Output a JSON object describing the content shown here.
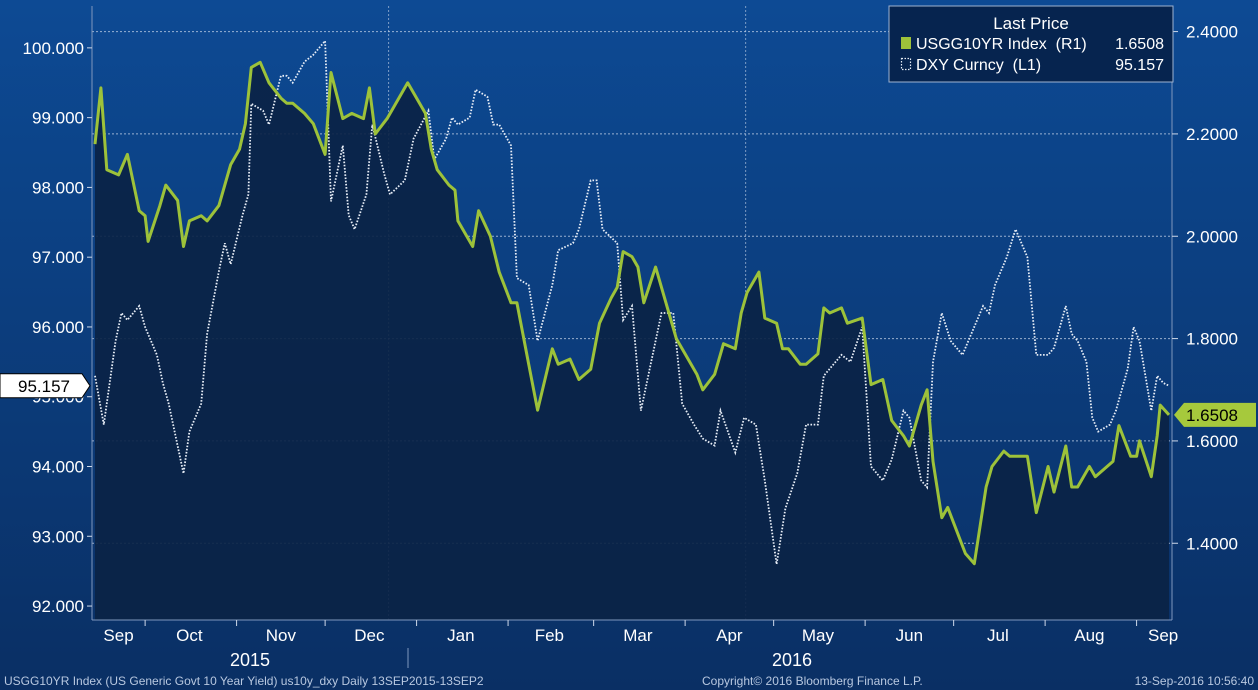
{
  "colors": {
    "bg_top": "#0d4a94",
    "bg_bottom": "#0a2f64",
    "plot_fill": "#0b2345",
    "grid": "#c9d6ea",
    "axis_text": "#ffffff",
    "right_axis_text": "#ffffff",
    "yield_line": "#9dc23a",
    "dxy_line": "#e8eef7",
    "badge_left_bg": "#ffffff",
    "badge_left_text": "#000000",
    "badge_right_bg": "#a6c93c",
    "badge_right_text": "#000000",
    "footer_text": "#b8c8e0"
  },
  "legend": {
    "title": "Last Price",
    "items": [
      {
        "label": "USGG10YR Index  (R1)",
        "value": "1.6508",
        "style": "solid"
      },
      {
        "label": "DXY Curncy  (L1)",
        "value": "95.157",
        "style": "dotted"
      }
    ]
  },
  "badges": {
    "left": "95.157",
    "right": "1.6508"
  },
  "footer": {
    "left": "USGG10YR Index (US Generic Govt 10 Year Yield) us10y_dxy  Daily 13SEP2015-13SEP2",
    "middle": "Copyright© 2016 Bloomberg Finance L.P.",
    "right": "13-Sep-2016 10:56:40"
  },
  "chart_data": {
    "type": "line",
    "x_months": [
      "Sep",
      "Oct",
      "Nov",
      "Dec",
      "Jan",
      "Feb",
      "Mar",
      "Apr",
      "May",
      "Jun",
      "Jul",
      "Aug",
      "Sep"
    ],
    "x_years": [
      "2015",
      "2016"
    ],
    "x_range": [
      "2015-09-13",
      "2016-09-13"
    ],
    "left_axis": {
      "series": "DXY Curncy",
      "ylim": [
        91.8,
        100.6
      ],
      "ticks": [
        "100.000",
        "99.000",
        "98.000",
        "97.000",
        "96.000",
        "95.000",
        "94.000",
        "93.000",
        "92.000"
      ]
    },
    "right_axis": {
      "series": "USGG10YR Index",
      "ylim": [
        1.25,
        2.45
      ],
      "ticks": [
        "2.4000",
        "2.2000",
        "2.0000",
        "1.8000",
        "1.6000",
        "1.4000"
      ]
    },
    "grid": true,
    "legend_position": "top-right",
    "series": [
      {
        "name": "USGG10YR Index",
        "axis": "right",
        "values": [
          [
            "2015-09-14",
            2.18
          ],
          [
            "2015-09-16",
            2.29
          ],
          [
            "2015-09-18",
            2.13
          ],
          [
            "2015-09-22",
            2.12
          ],
          [
            "2015-09-25",
            2.16
          ],
          [
            "2015-09-29",
            2.05
          ],
          [
            "2015-10-01",
            2.04
          ],
          [
            "2015-10-02",
            1.99
          ],
          [
            "2015-10-06",
            2.06
          ],
          [
            "2015-10-08",
            2.1
          ],
          [
            "2015-10-12",
            2.07
          ],
          [
            "2015-10-14",
            1.98
          ],
          [
            "2015-10-16",
            2.03
          ],
          [
            "2015-10-20",
            2.04
          ],
          [
            "2015-10-22",
            2.03
          ],
          [
            "2015-10-26",
            2.06
          ],
          [
            "2015-10-28",
            2.1
          ],
          [
            "2015-10-30",
            2.14
          ],
          [
            "2015-11-02",
            2.17
          ],
          [
            "2015-11-04",
            2.22
          ],
          [
            "2015-11-06",
            2.33
          ],
          [
            "2015-11-09",
            2.34
          ],
          [
            "2015-11-12",
            2.3
          ],
          [
            "2015-11-16",
            2.27
          ],
          [
            "2015-11-18",
            2.26
          ],
          [
            "2015-11-20",
            2.26
          ],
          [
            "2015-11-24",
            2.24
          ],
          [
            "2015-11-27",
            2.22
          ],
          [
            "2015-12-01",
            2.16
          ],
          [
            "2015-12-03",
            2.32
          ],
          [
            "2015-12-07",
            2.23
          ],
          [
            "2015-12-10",
            2.24
          ],
          [
            "2015-12-14",
            2.23
          ],
          [
            "2015-12-16",
            2.29
          ],
          [
            "2015-12-18",
            2.2
          ],
          [
            "2015-12-22",
            2.23
          ],
          [
            "2015-12-29",
            2.3
          ],
          [
            "2016-01-04",
            2.24
          ],
          [
            "2016-01-06",
            2.17
          ],
          [
            "2016-01-08",
            2.13
          ],
          [
            "2016-01-12",
            2.1
          ],
          [
            "2016-01-14",
            2.09
          ],
          [
            "2016-01-15",
            2.03
          ],
          [
            "2016-01-20",
            1.98
          ],
          [
            "2016-01-22",
            2.05
          ],
          [
            "2016-01-26",
            2.0
          ],
          [
            "2016-01-29",
            1.93
          ],
          [
            "2016-02-02",
            1.87
          ],
          [
            "2016-02-04",
            1.87
          ],
          [
            "2016-02-08",
            1.75
          ],
          [
            "2016-02-11",
            1.66
          ],
          [
            "2016-02-16",
            1.78
          ],
          [
            "2016-02-18",
            1.75
          ],
          [
            "2016-02-22",
            1.76
          ],
          [
            "2016-02-25",
            1.72
          ],
          [
            "2016-02-29",
            1.74
          ],
          [
            "2016-03-03",
            1.83
          ],
          [
            "2016-03-07",
            1.88
          ],
          [
            "2016-03-09",
            1.9
          ],
          [
            "2016-03-11",
            1.97
          ],
          [
            "2016-03-14",
            1.96
          ],
          [
            "2016-03-16",
            1.94
          ],
          [
            "2016-03-18",
            1.87
          ],
          [
            "2016-03-22",
            1.94
          ],
          [
            "2016-03-24",
            1.9
          ],
          [
            "2016-03-29",
            1.8
          ],
          [
            "2016-04-01",
            1.77
          ],
          [
            "2016-04-05",
            1.73
          ],
          [
            "2016-04-07",
            1.7
          ],
          [
            "2016-04-11",
            1.73
          ],
          [
            "2016-04-14",
            1.79
          ],
          [
            "2016-04-18",
            1.78
          ],
          [
            "2016-04-20",
            1.85
          ],
          [
            "2016-04-22",
            1.89
          ],
          [
            "2016-04-26",
            1.93
          ],
          [
            "2016-04-28",
            1.84
          ],
          [
            "2016-05-02",
            1.83
          ],
          [
            "2016-05-04",
            1.78
          ],
          [
            "2016-05-06",
            1.78
          ],
          [
            "2016-05-10",
            1.75
          ],
          [
            "2016-05-12",
            1.75
          ],
          [
            "2016-05-16",
            1.77
          ],
          [
            "2016-05-18",
            1.86
          ],
          [
            "2016-05-20",
            1.85
          ],
          [
            "2016-05-24",
            1.86
          ],
          [
            "2016-05-26",
            1.83
          ],
          [
            "2016-05-31",
            1.84
          ],
          [
            "2016-06-03",
            1.71
          ],
          [
            "2016-06-07",
            1.72
          ],
          [
            "2016-06-10",
            1.64
          ],
          [
            "2016-06-14",
            1.61
          ],
          [
            "2016-06-16",
            1.59
          ],
          [
            "2016-06-20",
            1.67
          ],
          [
            "2016-06-22",
            1.7
          ],
          [
            "2016-06-24",
            1.56
          ],
          [
            "2016-06-27",
            1.45
          ],
          [
            "2016-06-29",
            1.47
          ],
          [
            "2016-07-01",
            1.44
          ],
          [
            "2016-07-05",
            1.38
          ],
          [
            "2016-07-08",
            1.36
          ],
          [
            "2016-07-12",
            1.51
          ],
          [
            "2016-07-14",
            1.55
          ],
          [
            "2016-07-18",
            1.58
          ],
          [
            "2016-07-20",
            1.57
          ],
          [
            "2016-07-22",
            1.57
          ],
          [
            "2016-07-26",
            1.57
          ],
          [
            "2016-07-29",
            1.46
          ],
          [
            "2016-08-02",
            1.55
          ],
          [
            "2016-08-04",
            1.5
          ],
          [
            "2016-08-08",
            1.59
          ],
          [
            "2016-08-10",
            1.51
          ],
          [
            "2016-08-12",
            1.51
          ],
          [
            "2016-08-16",
            1.55
          ],
          [
            "2016-08-18",
            1.53
          ],
          [
            "2016-08-22",
            1.55
          ],
          [
            "2016-08-24",
            1.56
          ],
          [
            "2016-08-26",
            1.63
          ],
          [
            "2016-08-30",
            1.57
          ],
          [
            "2016-09-01",
            1.57
          ],
          [
            "2016-09-02",
            1.6
          ],
          [
            "2016-09-06",
            1.53
          ],
          [
            "2016-09-08",
            1.61
          ],
          [
            "2016-09-09",
            1.67
          ],
          [
            "2016-09-12",
            1.6508
          ]
        ]
      },
      {
        "name": "DXY Curncy",
        "axis": "left",
        "values": [
          [
            "2015-09-14",
            95.3
          ],
          [
            "2015-09-17",
            94.6
          ],
          [
            "2015-09-21",
            95.8
          ],
          [
            "2015-09-23",
            96.2
          ],
          [
            "2015-09-25",
            96.1
          ],
          [
            "2015-09-29",
            96.3
          ],
          [
            "2015-10-01",
            96.0
          ],
          [
            "2015-10-05",
            95.6
          ],
          [
            "2015-10-07",
            95.2
          ],
          [
            "2015-10-09",
            94.9
          ],
          [
            "2015-10-14",
            93.9
          ],
          [
            "2015-10-16",
            94.5
          ],
          [
            "2015-10-20",
            94.9
          ],
          [
            "2015-10-22",
            95.9
          ],
          [
            "2015-10-26",
            96.8
          ],
          [
            "2015-10-28",
            97.2
          ],
          [
            "2015-10-30",
            96.9
          ],
          [
            "2015-11-03",
            97.6
          ],
          [
            "2015-11-05",
            97.9
          ],
          [
            "2015-11-06",
            99.2
          ],
          [
            "2015-11-10",
            99.1
          ],
          [
            "2015-11-12",
            98.9
          ],
          [
            "2015-11-16",
            99.6
          ],
          [
            "2015-11-18",
            99.6
          ],
          [
            "2015-11-20",
            99.5
          ],
          [
            "2015-11-24",
            99.8
          ],
          [
            "2015-11-27",
            99.9
          ],
          [
            "2015-12-01",
            100.1
          ],
          [
            "2015-12-03",
            97.8
          ],
          [
            "2015-12-07",
            98.6
          ],
          [
            "2015-12-09",
            97.6
          ],
          [
            "2015-12-11",
            97.4
          ],
          [
            "2015-12-15",
            97.9
          ],
          [
            "2015-12-17",
            98.9
          ],
          [
            "2015-12-21",
            98.2
          ],
          [
            "2015-12-23",
            97.9
          ],
          [
            "2015-12-28",
            98.1
          ],
          [
            "2015-12-31",
            98.7
          ],
          [
            "2016-01-05",
            99.1
          ],
          [
            "2016-01-07",
            98.4
          ],
          [
            "2016-01-11",
            98.7
          ],
          [
            "2016-01-13",
            99.0
          ],
          [
            "2016-01-15",
            98.9
          ],
          [
            "2016-01-19",
            99.0
          ],
          [
            "2016-01-21",
            99.4
          ],
          [
            "2016-01-25",
            99.3
          ],
          [
            "2016-01-27",
            98.9
          ],
          [
            "2016-01-29",
            98.9
          ],
          [
            "2016-02-02",
            98.6
          ],
          [
            "2016-02-04",
            96.7
          ],
          [
            "2016-02-08",
            96.6
          ],
          [
            "2016-02-11",
            95.8
          ],
          [
            "2016-02-16",
            96.6
          ],
          [
            "2016-02-18",
            97.1
          ],
          [
            "2016-02-23",
            97.2
          ],
          [
            "2016-02-25",
            97.4
          ],
          [
            "2016-02-29",
            98.1
          ],
          [
            "2016-03-02",
            98.1
          ],
          [
            "2016-03-04",
            97.4
          ],
          [
            "2016-03-09",
            97.2
          ],
          [
            "2016-03-11",
            96.1
          ],
          [
            "2016-03-14",
            96.3
          ],
          [
            "2016-03-17",
            94.8
          ],
          [
            "2016-03-22",
            95.8
          ],
          [
            "2016-03-24",
            96.2
          ],
          [
            "2016-03-28",
            96.2
          ],
          [
            "2016-03-31",
            94.9
          ],
          [
            "2016-04-04",
            94.6
          ],
          [
            "2016-04-07",
            94.4
          ],
          [
            "2016-04-11",
            94.3
          ],
          [
            "2016-04-13",
            94.8
          ],
          [
            "2016-04-18",
            94.2
          ],
          [
            "2016-04-21",
            94.7
          ],
          [
            "2016-04-25",
            94.6
          ],
          [
            "2016-04-28",
            93.8
          ],
          [
            "2016-05-02",
            92.6
          ],
          [
            "2016-05-05",
            93.4
          ],
          [
            "2016-05-09",
            93.9
          ],
          [
            "2016-05-12",
            94.6
          ],
          [
            "2016-05-16",
            94.6
          ],
          [
            "2016-05-18",
            95.3
          ],
          [
            "2016-05-20",
            95.4
          ],
          [
            "2016-05-24",
            95.6
          ],
          [
            "2016-05-27",
            95.5
          ],
          [
            "2016-05-31",
            96.0
          ],
          [
            "2016-06-03",
            94.0
          ],
          [
            "2016-06-07",
            93.8
          ],
          [
            "2016-06-10",
            94.1
          ],
          [
            "2016-06-14",
            94.8
          ],
          [
            "2016-06-16",
            94.7
          ],
          [
            "2016-06-20",
            93.8
          ],
          [
            "2016-06-22",
            93.7
          ],
          [
            "2016-06-24",
            95.5
          ],
          [
            "2016-06-27",
            96.2
          ],
          [
            "2016-06-30",
            95.8
          ],
          [
            "2016-07-04",
            95.6
          ],
          [
            "2016-07-07",
            95.9
          ],
          [
            "2016-07-11",
            96.3
          ],
          [
            "2016-07-13",
            96.2
          ],
          [
            "2016-07-15",
            96.6
          ],
          [
            "2016-07-19",
            97.0
          ],
          [
            "2016-07-22",
            97.4
          ],
          [
            "2016-07-26",
            97.0
          ],
          [
            "2016-07-29",
            95.6
          ],
          [
            "2016-08-02",
            95.6
          ],
          [
            "2016-08-04",
            95.7
          ],
          [
            "2016-08-08",
            96.3
          ],
          [
            "2016-08-10",
            95.9
          ],
          [
            "2016-08-12",
            95.8
          ],
          [
            "2016-08-15",
            95.5
          ],
          [
            "2016-08-17",
            94.7
          ],
          [
            "2016-08-19",
            94.5
          ],
          [
            "2016-08-23",
            94.6
          ],
          [
            "2016-08-25",
            94.8
          ],
          [
            "2016-08-29",
            95.4
          ],
          [
            "2016-08-31",
            96.0
          ],
          [
            "2016-09-02",
            95.8
          ],
          [
            "2016-09-06",
            94.8
          ],
          [
            "2016-09-08",
            95.3
          ],
          [
            "2016-09-10",
            95.2
          ],
          [
            "2016-09-12",
            95.157
          ]
        ]
      }
    ]
  }
}
